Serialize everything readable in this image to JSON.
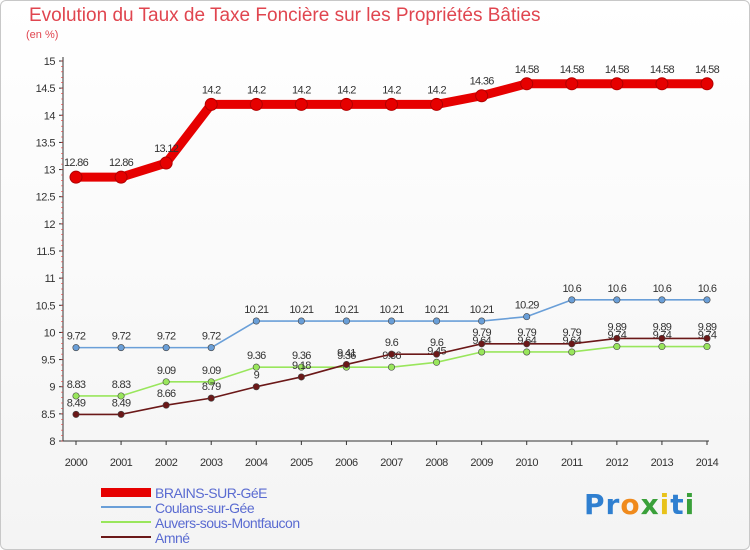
{
  "chart_data": {
    "type": "line",
    "title": "Evolution du Taux de Taxe Foncière sur les Propriétés Bâties",
    "ylabel": "(en %)",
    "xlabel": "",
    "x": [
      "2000",
      "2001",
      "2002",
      "2003",
      "2004",
      "2005",
      "2006",
      "2007",
      "2008",
      "2009",
      "2010",
      "2011",
      "2012",
      "2013",
      "2014"
    ],
    "ylim": [
      8,
      15
    ],
    "yticks": [
      "8",
      "8.5",
      "9",
      "9.5",
      "10",
      "10.5",
      "11",
      "11.5",
      "12",
      "12.5",
      "13",
      "13.5",
      "14",
      "14.5",
      "15"
    ],
    "grid": false,
    "legend_position": "bottom-left",
    "series": [
      {
        "name": "BRAINS-SUR-GéE",
        "color": "#e60000",
        "values": [
          12.86,
          12.86,
          13.12,
          14.2,
          14.2,
          14.2,
          14.2,
          14.2,
          14.2,
          14.36,
          14.58,
          14.58,
          14.58,
          14.58,
          14.58
        ],
        "labels": [
          "12.86",
          "12.86",
          "13.12",
          "14.2",
          "14.2",
          "14.2",
          "14.2",
          "14.2",
          "14.2",
          "14.36",
          "14.58",
          "14.58",
          "14.58",
          "14.58",
          "14.58"
        ]
      },
      {
        "name": "Coulans-sur-Gée",
        "color": "#6a9fd8",
        "values": [
          9.72,
          9.72,
          9.72,
          9.72,
          10.21,
          10.21,
          10.21,
          10.21,
          10.21,
          10.21,
          10.29,
          10.6,
          10.6,
          10.6,
          10.6
        ],
        "labels": [
          "9.72",
          "9.72",
          "9.72",
          "9.72",
          "10.21",
          "10.21",
          "10.21",
          "10.21",
          "10.21",
          "10.21",
          "10.29",
          "10.6",
          "10.6",
          "10.6",
          "10.6"
        ]
      },
      {
        "name": "Auvers-sous-Montfaucon",
        "color": "#99e65c",
        "values": [
          8.83,
          8.83,
          9.09,
          9.09,
          9.36,
          9.36,
          9.36,
          9.36,
          9.45,
          9.64,
          9.64,
          9.64,
          9.74,
          9.74,
          9.74
        ],
        "labels": [
          "8.83",
          "8.83",
          "9.09",
          "9.09",
          "9.36",
          "9.36",
          "9.36",
          "9.36",
          "9.45",
          "9.64",
          "9.64",
          "9.64",
          "9.74",
          "9.74",
          "9.74"
        ]
      },
      {
        "name": "Amné",
        "color": "#6b1818",
        "values": [
          8.49,
          8.49,
          8.66,
          8.79,
          9,
          9.18,
          9.41,
          9.6,
          9.6,
          9.79,
          9.79,
          9.79,
          9.89,
          9.89,
          9.89
        ],
        "labels": [
          "8.49",
          "8.49",
          "8.66",
          "8.79",
          "9",
          "9.18",
          "9.41",
          "9.6",
          "9.6",
          "9.79",
          "9.79",
          "9.79",
          "9.89",
          "9.89",
          "9.89"
        ]
      }
    ]
  },
  "brand": {
    "letters": [
      "P",
      "r",
      "o",
      "x",
      "i",
      "t",
      "i"
    ],
    "colors": [
      "#2f7fd0",
      "#2f7fd0",
      "#f08a1c",
      "#3aa03a",
      "#e8c21a",
      "#2f7fd0",
      "#3aa03a"
    ]
  }
}
